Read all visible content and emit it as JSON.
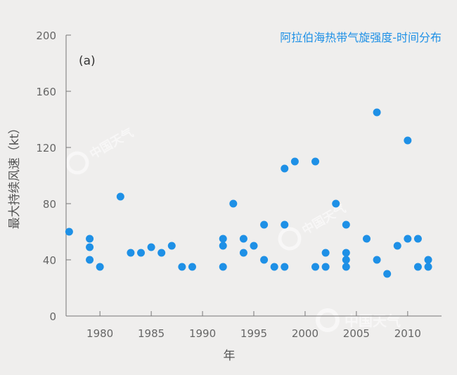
{
  "chart_data": {
    "type": "scatter",
    "title": "阿拉伯海热带气旋强度-时间分布",
    "panel_label": "(a)",
    "xlabel": "年",
    "ylabel": "最大持续风速（kt）",
    "xlim": [
      1976.7,
      2013.3
    ],
    "ylim": [
      0,
      200
    ],
    "xticks": [
      1980,
      1985,
      1990,
      1995,
      2000,
      2005,
      2010
    ],
    "yticks": [
      0,
      40,
      80,
      120,
      160,
      200
    ],
    "grid": false,
    "marker_color": "#1e90e6",
    "watermark": "中国天气",
    "x": [
      1977,
      1979,
      1979,
      1979,
      1980,
      1982,
      1983,
      1984,
      1985,
      1986,
      1987,
      1988,
      1989,
      1992,
      1992,
      1992,
      1993,
      1994,
      1994,
      1995,
      1996,
      1996,
      1997,
      1998,
      1998,
      1998,
      1999,
      2001,
      2001,
      2002,
      2002,
      2003,
      2004,
      2004,
      2004,
      2004,
      2006,
      2007,
      2007,
      2008,
      2009,
      2010,
      2010,
      2011,
      2011,
      2012,
      2012
    ],
    "y": [
      60,
      55,
      49,
      40,
      35,
      85,
      45,
      45,
      49,
      45,
      50,
      35,
      35,
      55,
      50,
      35,
      80,
      55,
      45,
      50,
      65,
      40,
      35,
      105,
      65,
      35,
      110,
      110,
      35,
      45,
      35,
      80,
      65,
      45,
      40,
      35,
      55,
      145,
      40,
      30,
      50,
      125,
      55,
      55,
      35,
      40,
      35
    ]
  }
}
